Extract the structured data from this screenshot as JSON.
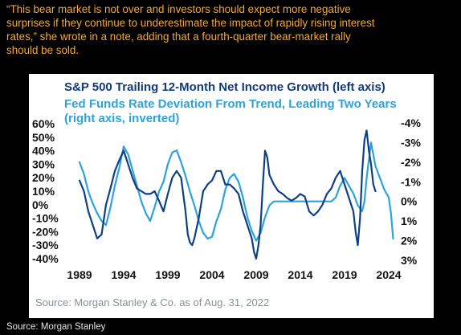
{
  "quote": {
    "line1": "“This bear market is not over and investors should expect more negative",
    "line2": "surprises if they continue to underestimate the impact of rapidly rising interest",
    "line3": "rates,” she wrote in a note, adding that a fourth-quarter bear-market rally",
    "line4": "should be sold."
  },
  "chart_data": {
    "type": "line",
    "title": "S&P 500 Trailing 12-Month Net Income Growth (left axis)",
    "subtitle_line1": "Fed Funds Rate Deviation From Trend, Leading Two Years",
    "subtitle_line2": "(right axis, inverted)",
    "source": "Source: Morgan Stanley & Co. as of Aug. 31, 2022",
    "x_tick_labels": [
      "1989",
      "1994",
      "1999",
      "2004",
      "2009",
      "2014",
      "2019",
      "2024"
    ],
    "x_ticks": [
      1989,
      1994,
      1999,
      2004,
      2009,
      2014,
      2019,
      2024
    ],
    "xlim": [
      1989,
      2025
    ],
    "y_left_tick_labels": [
      "60%",
      "50%",
      "40%",
      "30%",
      "20%",
      "10%",
      "0%",
      "-10%",
      "-20%",
      "-30%",
      "-40%"
    ],
    "y_left_ticks": [
      60,
      50,
      40,
      30,
      20,
      10,
      0,
      -10,
      -20,
      -30,
      -40
    ],
    "y_left_lim": [
      -40,
      60
    ],
    "y_right_tick_labels": [
      "-4%",
      "-3%",
      "-2%",
      "-1%",
      "0%",
      "1%",
      "2%",
      "3%"
    ],
    "y_right_ticks": [
      -4,
      -3,
      -2,
      -1,
      0,
      1,
      2,
      3
    ],
    "y_right_lim": [
      -4,
      3
    ],
    "y_right_inverted": true,
    "grid": false,
    "colors": {
      "income": "#0e3f86",
      "fed": "#2ba3dc",
      "title": "#123a7a",
      "subtitle": "#2ba3dc"
    },
    "series": [
      {
        "axis": "left",
        "color_key": "income",
        "x": [
          1989.0,
          1989.5,
          1990.0,
          1990.5,
          1991.0,
          1991.5,
          1992.0,
          1992.5,
          1993.0,
          1993.5,
          1994.0,
          1994.5,
          1995.0,
          1995.5,
          1996.0,
          1996.5,
          1997.0,
          1997.5,
          1998.0,
          1998.5,
          1999.0,
          1999.5,
          2000.0,
          2000.5,
          2001.0,
          2001.25,
          2001.5,
          2001.75,
          2002.0,
          2002.5,
          2003.0,
          2003.5,
          2004.0,
          2004.5,
          2005.0,
          2005.5,
          2006.0,
          2006.5,
          2007.0,
          2007.5,
          2008.0,
          2008.5,
          2008.75,
          2009.0,
          2009.25,
          2009.5,
          2009.75,
          2010.0,
          2010.25,
          2010.5,
          2011.0,
          2011.5,
          2012.0,
          2012.5,
          2013.0,
          2013.5,
          2014.0,
          2014.5,
          2015.0,
          2015.5,
          2016.0,
          2016.5,
          2017.0,
          2017.5,
          2018.0,
          2018.5,
          2019.0,
          2019.5,
          2020.0,
          2020.25,
          2020.5,
          2020.75,
          2021.0,
          2021.25,
          2021.5,
          2021.75,
          2022.0,
          2022.25,
          2022.5
        ],
        "y": [
          18,
          10,
          -5,
          -15,
          -25,
          -22,
          0,
          12,
          25,
          33,
          40,
          30,
          20,
          12,
          10,
          8,
          8,
          10,
          3,
          -5,
          8,
          20,
          25,
          20,
          -5,
          -22,
          -28,
          -30,
          -25,
          -10,
          10,
          15,
          18,
          25,
          25,
          15,
          15,
          12,
          8,
          -5,
          -15,
          -25,
          -35,
          -40,
          -30,
          -15,
          15,
          40,
          35,
          22,
          15,
          10,
          8,
          5,
          3,
          5,
          8,
          6,
          -5,
          -8,
          -5,
          0,
          8,
          12,
          20,
          25,
          15,
          5,
          -5,
          -20,
          -30,
          -10,
          25,
          48,
          55,
          40,
          30,
          15,
          10
        ]
      },
      {
        "axis": "right",
        "color_key": "fed",
        "x": [
          1989.0,
          1989.5,
          1990.0,
          1990.5,
          1991.0,
          1991.5,
          1992.0,
          1992.5,
          1993.0,
          1993.5,
          1994.0,
          1994.5,
          1995.0,
          1995.5,
          1996.0,
          1996.5,
          1997.0,
          1997.5,
          1998.0,
          1998.5,
          1999.0,
          1999.5,
          2000.0,
          2000.5,
          2001.0,
          2001.5,
          2002.0,
          2002.5,
          2003.0,
          2003.5,
          2004.0,
          2004.5,
          2005.0,
          2005.5,
          2006.0,
          2006.5,
          2007.0,
          2007.5,
          2008.0,
          2008.5,
          2009.0,
          2009.5,
          2010.0,
          2010.5,
          2011.0,
          2011.5,
          2012.0,
          2012.5,
          2013.0,
          2013.5,
          2014.0,
          2014.5,
          2015.0,
          2015.5,
          2016.0,
          2016.5,
          2017.0,
          2017.5,
          2018.0,
          2018.5,
          2019.0,
          2019.5,
          2020.0,
          2020.5,
          2021.0,
          2021.25,
          2021.5,
          2022.0,
          2022.5,
          2023.0,
          2023.5,
          2024.0,
          2024.25,
          2024.5
        ],
        "y": [
          -2.0,
          -1.4,
          -0.5,
          0.1,
          0.6,
          1.0,
          1.2,
          0.3,
          -0.8,
          -1.7,
          -2.8,
          -2.4,
          -1.6,
          -0.8,
          0.0,
          0.6,
          1.0,
          0.3,
          -0.5,
          -1.0,
          -1.9,
          -2.5,
          -2.6,
          -2.0,
          -1.3,
          -0.5,
          0.2,
          1.0,
          1.6,
          1.9,
          1.8,
          1.0,
          0.4,
          -0.6,
          -1.2,
          -1.4,
          -1.0,
          -0.2,
          0.8,
          1.5,
          2.0,
          1.6,
          0.8,
          0.2,
          0.0,
          0.0,
          0.0,
          0.0,
          0.0,
          0.0,
          0.0,
          0.0,
          0.0,
          0.0,
          0.0,
          0.0,
          0.0,
          0.0,
          -0.2,
          -0.8,
          -1.2,
          -0.8,
          -0.4,
          0.2,
          0.5,
          0.0,
          -1.2,
          -3.0,
          -1.8,
          -1.2,
          -0.6,
          -0.2,
          0.6,
          1.9
        ]
      }
    ]
  },
  "footer": "Source: Morgan Stanley"
}
